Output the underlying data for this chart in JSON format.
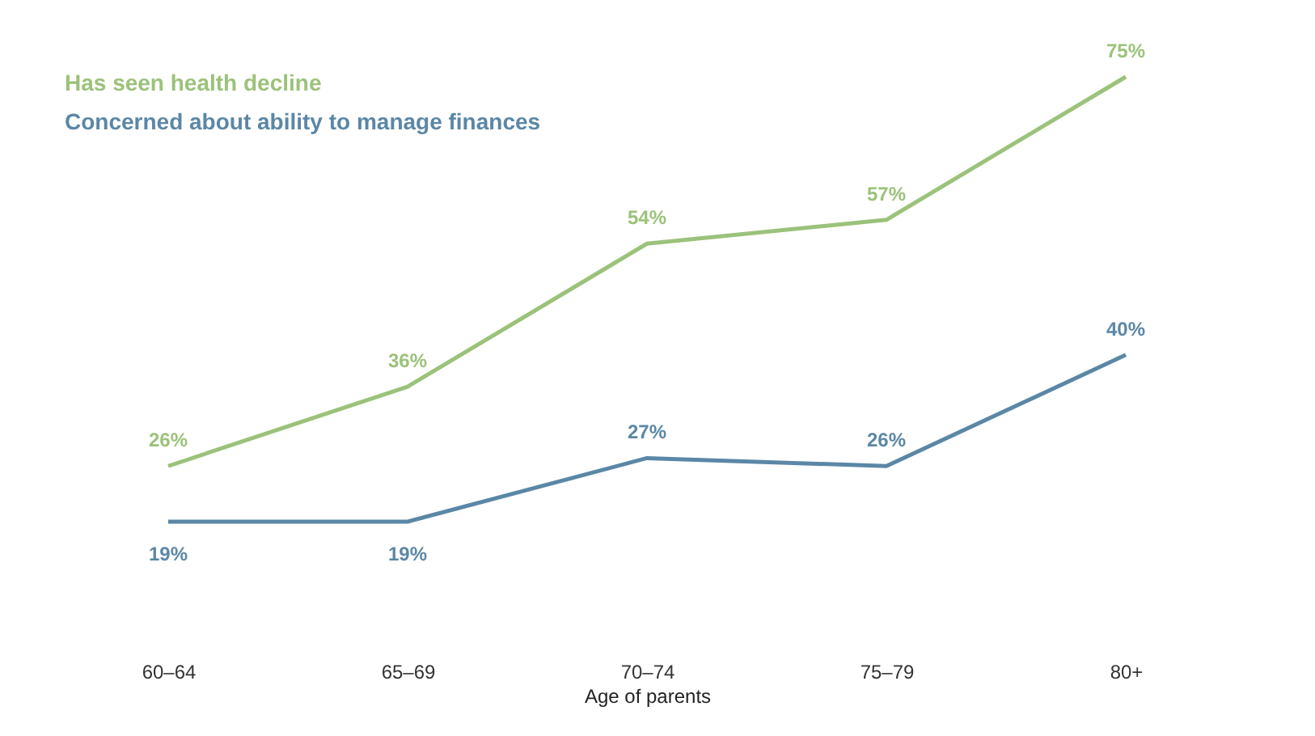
{
  "chart_data": {
    "type": "line",
    "xlabel": "Age of parents",
    "categories": [
      "60–64",
      "65–69",
      "70–74",
      "75–79",
      "80+"
    ],
    "series": [
      {
        "name": "Has seen health decline",
        "color": "#9bc27a",
        "values": [
          26,
          36,
          54,
          57,
          75
        ],
        "value_labels": [
          "26%",
          "36%",
          "54%",
          "57%",
          "75%"
        ]
      },
      {
        "name": "Concerned about ability to manage finances",
        "color": "#5b87a6",
        "values": [
          19,
          19,
          27,
          26,
          40
        ],
        "value_labels": [
          "19%",
          "19%",
          "27%",
          "26%",
          "40%"
        ]
      }
    ],
    "legend": "top left",
    "grid": false,
    "marker": "none",
    "line_style": "solid"
  }
}
